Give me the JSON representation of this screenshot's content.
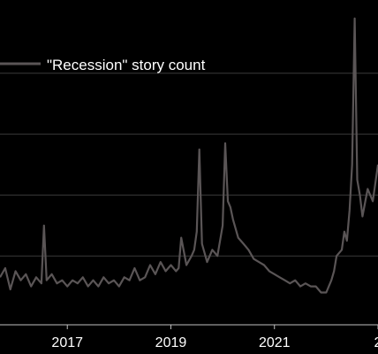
{
  "chart_data": {
    "type": "line",
    "title": "",
    "xlabel": "",
    "ylabel": "",
    "grid": true,
    "legend_position": "top-left",
    "x_ticks": [
      "2017",
      "2019",
      "2021",
      "2"
    ],
    "xlim": [
      2015.7,
      2023.0
    ],
    "ylim": [
      0,
      1
    ],
    "colors": {
      "background": "#000000",
      "series": "#5a5556",
      "grid": "#3a3a3a",
      "axis": "#bfbfbf",
      "text": "#ffffff"
    },
    "series": [
      {
        "name": "\"Recession\" story count",
        "x": [
          2015.7,
          2015.8,
          2015.9,
          2016.0,
          2016.1,
          2016.2,
          2016.3,
          2016.4,
          2016.5,
          2016.55,
          2016.6,
          2016.7,
          2016.8,
          2016.9,
          2017.0,
          2017.1,
          2017.2,
          2017.3,
          2017.4,
          2017.5,
          2017.6,
          2017.7,
          2017.8,
          2017.9,
          2018.0,
          2018.1,
          2018.2,
          2018.3,
          2018.4,
          2018.5,
          2018.6,
          2018.7,
          2018.8,
          2018.9,
          2019.0,
          2019.1,
          2019.15,
          2019.2,
          2019.3,
          2019.4,
          2019.45,
          2019.5,
          2019.55,
          2019.6,
          2019.7,
          2019.8,
          2019.9,
          2020.0,
          2020.05,
          2020.1,
          2020.15,
          2020.2,
          2020.3,
          2020.4,
          2020.5,
          2020.6,
          2020.7,
          2020.8,
          2020.9,
          2021.0,
          2021.1,
          2021.2,
          2021.3,
          2021.4,
          2021.5,
          2021.6,
          2021.7,
          2021.8,
          2021.9,
          2022.0,
          2022.05,
          2022.1,
          2022.15,
          2022.2,
          2022.3,
          2022.35,
          2022.4,
          2022.45,
          2022.5,
          2022.55,
          2022.6,
          2022.65,
          2022.7,
          2022.8,
          2022.9,
          2023.0
        ],
        "values": [
          0.13,
          0.16,
          0.09,
          0.15,
          0.12,
          0.14,
          0.1,
          0.13,
          0.11,
          0.3,
          0.12,
          0.14,
          0.11,
          0.12,
          0.1,
          0.12,
          0.11,
          0.13,
          0.1,
          0.12,
          0.1,
          0.13,
          0.11,
          0.12,
          0.1,
          0.13,
          0.12,
          0.16,
          0.12,
          0.13,
          0.17,
          0.14,
          0.18,
          0.15,
          0.17,
          0.15,
          0.16,
          0.26,
          0.17,
          0.2,
          0.22,
          0.28,
          0.55,
          0.24,
          0.18,
          0.22,
          0.2,
          0.3,
          0.57,
          0.38,
          0.36,
          0.32,
          0.26,
          0.24,
          0.22,
          0.19,
          0.18,
          0.17,
          0.15,
          0.14,
          0.13,
          0.12,
          0.11,
          0.12,
          0.1,
          0.11,
          0.1,
          0.1,
          0.08,
          0.08,
          0.1,
          0.12,
          0.15,
          0.2,
          0.22,
          0.28,
          0.25,
          0.35,
          0.5,
          0.98,
          0.45,
          0.4,
          0.33,
          0.42,
          0.38,
          0.5
        ]
      }
    ]
  }
}
